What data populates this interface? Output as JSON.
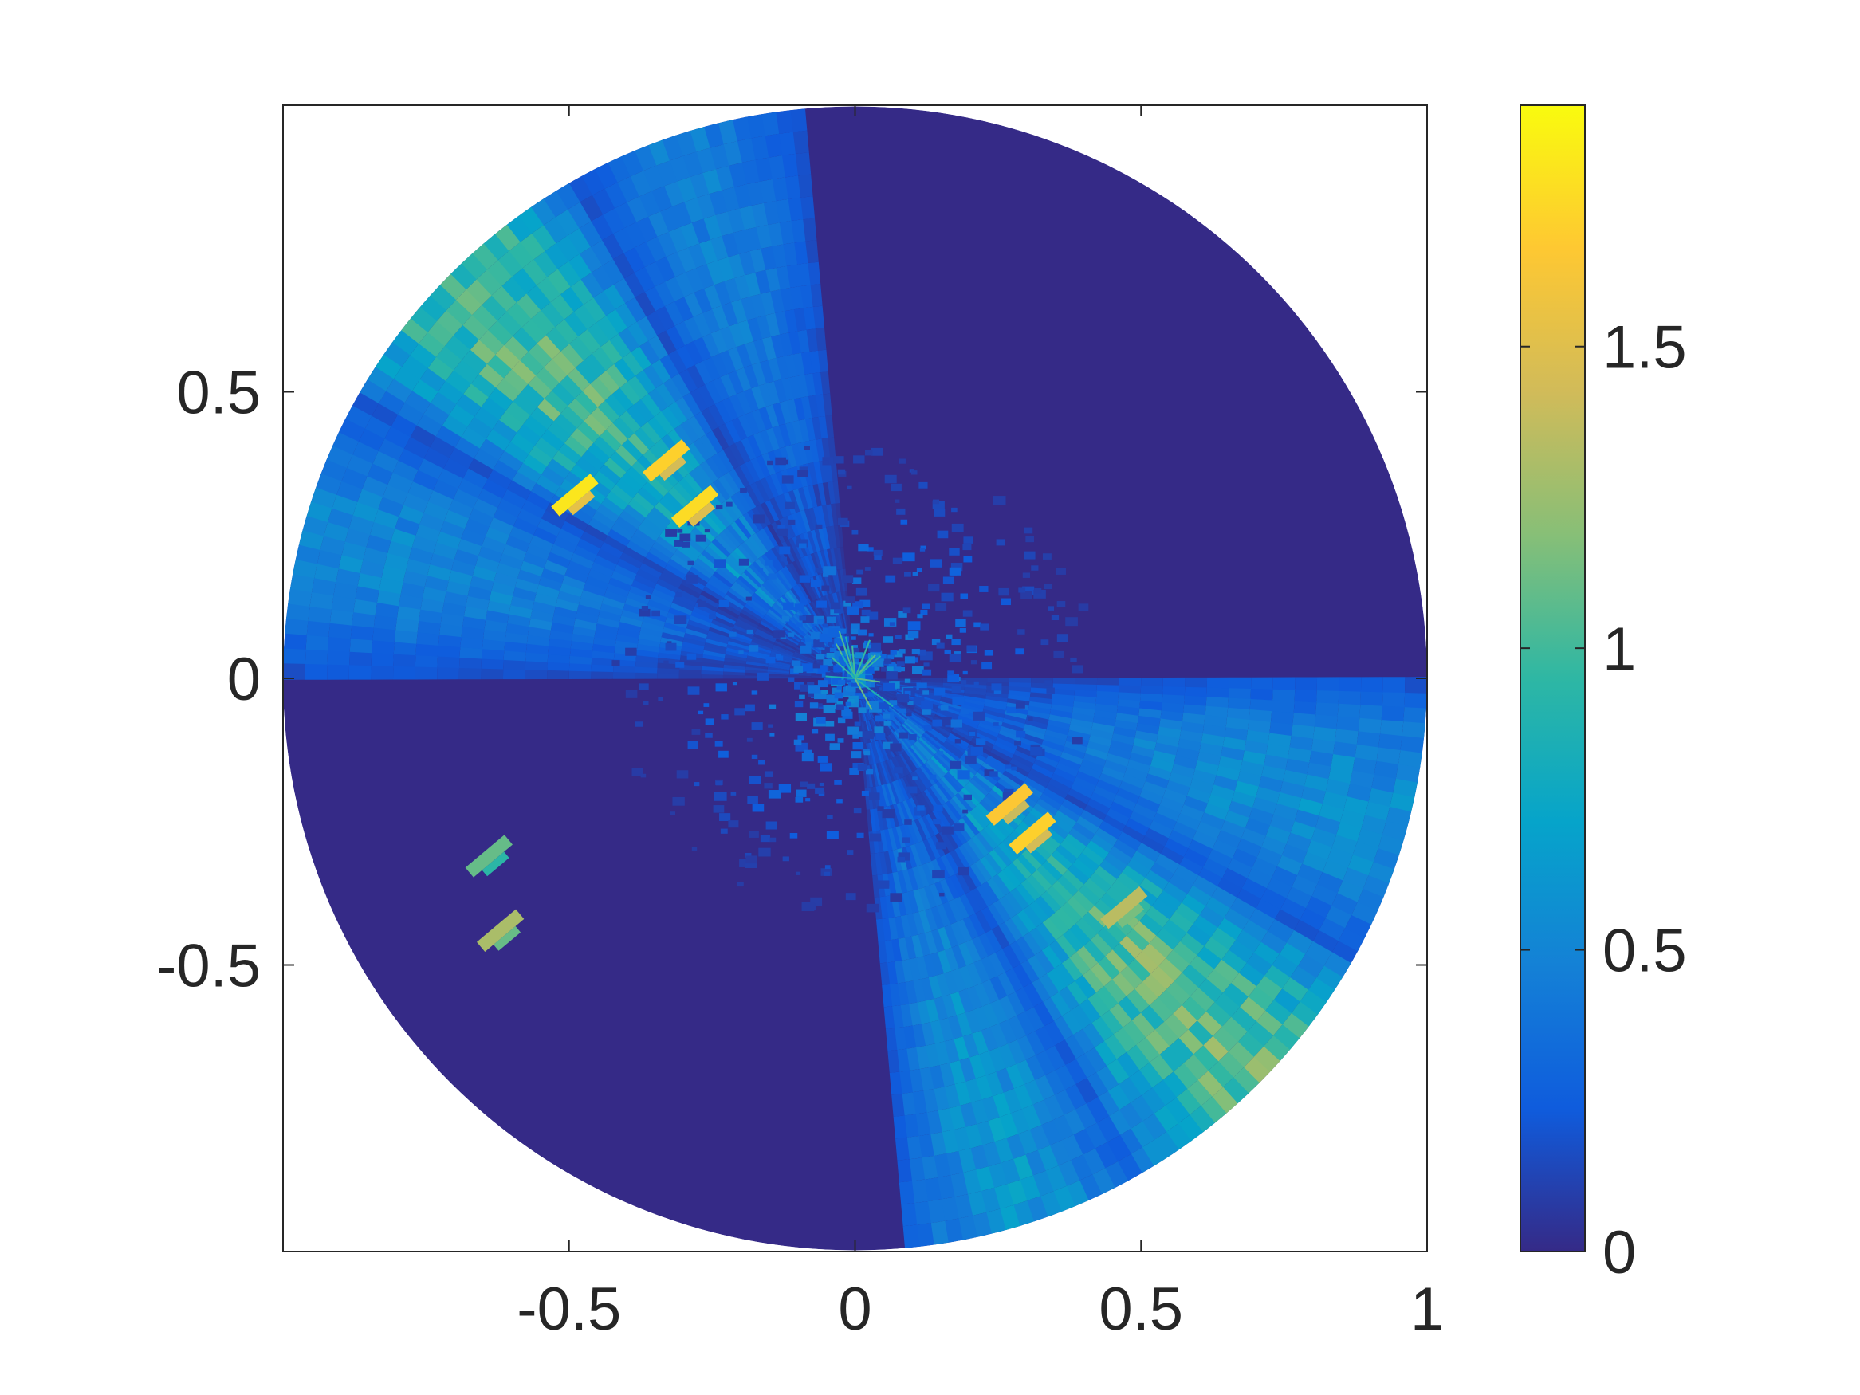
{
  "chart_data": {
    "type": "heatmap",
    "subtype": "polar",
    "title": "",
    "xlabel": "",
    "ylabel": "",
    "xlim": [
      -1,
      1
    ],
    "ylim": [
      -1,
      1
    ],
    "x_ticks": [
      {
        "value": -0.5,
        "label": "-0.5"
      },
      {
        "value": 0,
        "label": "0"
      },
      {
        "value": 0.5,
        "label": "0.5"
      },
      {
        "value": 1,
        "label": "1"
      }
    ],
    "y_ticks": [
      {
        "value": 0.5,
        "label": "0.5"
      },
      {
        "value": 0,
        "label": "0"
      },
      {
        "value": -0.5,
        "label": "-0.5"
      }
    ],
    "grid": false,
    "colormap": "parula",
    "colorbar": {
      "range": [
        0,
        1.9
      ],
      "ticks": [
        {
          "value": 0,
          "label": "0"
        },
        {
          "value": 0.5,
          "label": "0.5"
        },
        {
          "value": 1,
          "label": "1"
        },
        {
          "value": 1.5,
          "label": "1.5"
        }
      ],
      "colors": [
        "#352a87",
        "#0f5cdd",
        "#1481d6",
        "#06a4ca",
        "#2eb7a4",
        "#87bf77",
        "#d1bb59",
        "#fec832",
        "#f9fb0e"
      ]
    },
    "domain_radius": 1,
    "sectors": [
      {
        "theta_start": -30,
        "theta_end": 0,
        "value": 0.55
      },
      {
        "theta_start": -60,
        "theta_end": -30,
        "value": 1.05
      },
      {
        "theta_start": -85,
        "theta_end": -60,
        "value": 0.6
      },
      {
        "theta_start": 95,
        "theta_end": 120,
        "value": 0.45
      },
      {
        "theta_start": 120,
        "theta_end": 150,
        "value": 1.0
      },
      {
        "theta_start": 150,
        "theta_end": 180,
        "value": 0.5
      }
    ],
    "hotspots": [
      {
        "x": -0.33,
        "y": 0.38,
        "value": 1.7
      },
      {
        "x": -0.28,
        "y": 0.3,
        "value": 1.75
      },
      {
        "x": -0.49,
        "y": 0.32,
        "value": 1.8
      },
      {
        "x": 0.27,
        "y": -0.22,
        "value": 1.65
      },
      {
        "x": 0.31,
        "y": -0.27,
        "value": 1.7
      },
      {
        "x": 0.47,
        "y": -0.4,
        "value": 1.35
      },
      {
        "x": -0.62,
        "y": -0.44,
        "value": 1.3
      },
      {
        "x": -0.64,
        "y": -0.31,
        "value": 1.1
      }
    ]
  }
}
